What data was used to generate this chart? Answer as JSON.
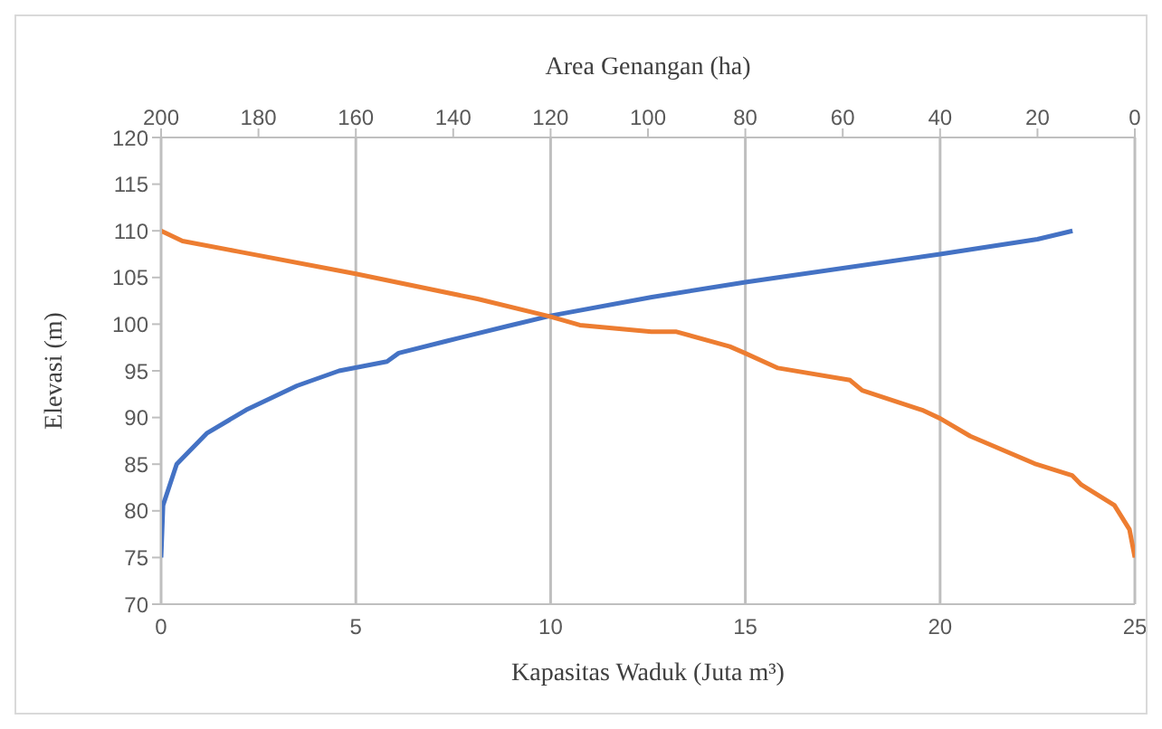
{
  "chart_data": {
    "type": "line",
    "xlabel": "Kapasitas Waduk (Juta m³)",
    "x2label": "Area Genangan (ha)",
    "ylabel": "Elevasi (m)",
    "xlim": [
      0,
      25
    ],
    "xticks": [
      0,
      5,
      10,
      15,
      20,
      25
    ],
    "x2lim": [
      200,
      0
    ],
    "x2ticks": [
      200,
      180,
      160,
      140,
      120,
      100,
      80,
      60,
      40,
      20,
      0
    ],
    "ylim": [
      70,
      120
    ],
    "yticks": [
      70,
      75,
      80,
      85,
      90,
      95,
      100,
      105,
      110,
      115,
      120
    ],
    "grid": "x",
    "legend": false,
    "marker": "none",
    "line_style": "solid",
    "series": [
      {
        "color": "#4472c4",
        "x": [
          0,
          0.05,
          0.4,
          1.17,
          2.18,
          3.49,
          4.57,
          5.8,
          6.1,
          7.34,
          8.9,
          10,
          12.6,
          15,
          20,
          22.5,
          23.4
        ],
        "values": [
          75,
          80.6,
          85,
          88.3,
          90.8,
          93.4,
          95,
          96,
          96.9,
          98.2,
          99.8,
          100.9,
          102.9,
          104.5,
          107.5,
          109.1,
          110
        ]
      },
      {
        "color": "#ed7d31",
        "axis": "x2",
        "x": [
          200,
          195.6,
          184.4,
          160,
          135,
          120,
          114,
          99.3,
          94.3,
          83.2,
          80.1,
          73.3,
          58.5,
          56,
          43.7,
          40,
          33.8,
          20.3,
          12.9,
          11,
          4.2,
          1.1,
          0
        ],
        "values": [
          110,
          108.9,
          107.8,
          105.4,
          102.7,
          100.8,
          99.9,
          99.2,
          99.2,
          97.6,
          96.9,
          95.3,
          94,
          92.9,
          90.8,
          89.9,
          88,
          85,
          83.8,
          82.8,
          80.6,
          78,
          75
        ]
      }
    ]
  }
}
